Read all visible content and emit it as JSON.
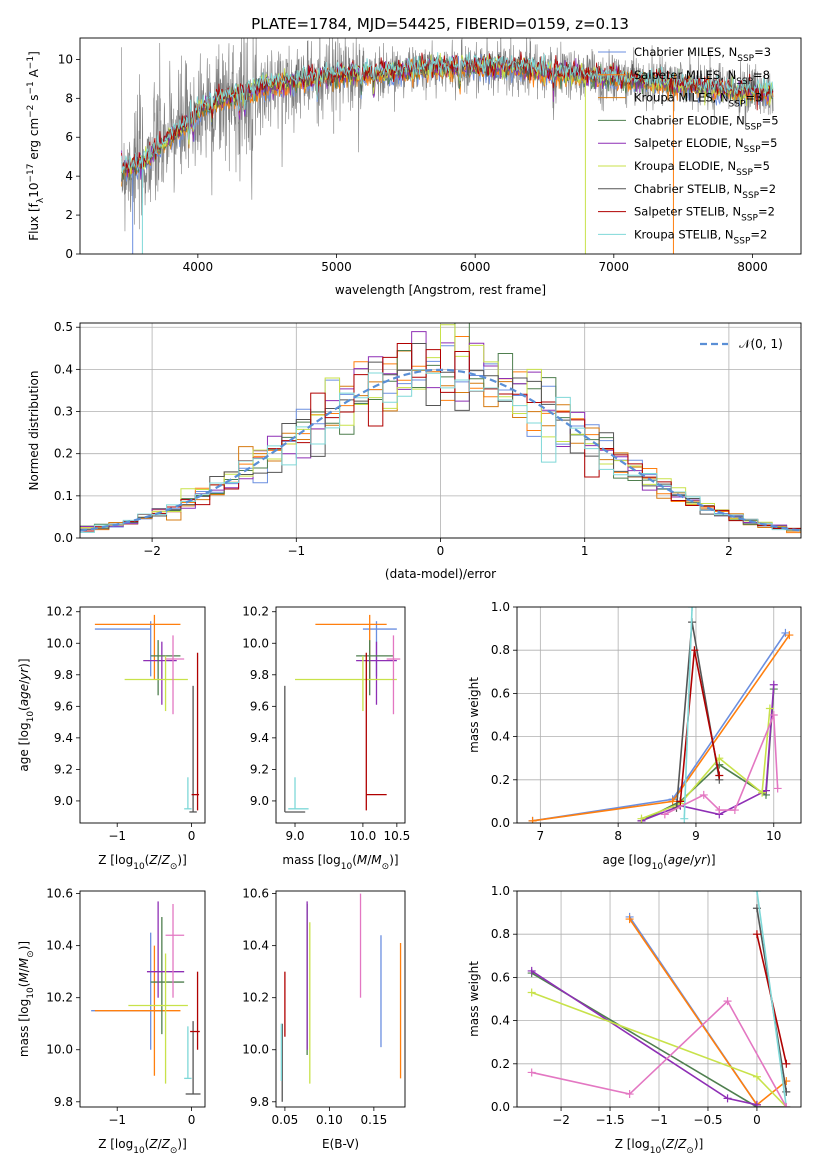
{
  "figure": {
    "title": "PLATE=1784, MJD=54425, FIBERID=0159, z=0.13"
  },
  "colors": {
    "Chabrier MILES": "#6b8fe0",
    "Salpeter MILES": "#ff7f0e",
    "Kroupa MILES": "#d67b12",
    "Chabrier ELODIE": "#4f7f4f",
    "Salpeter ELODIE": "#8e2fb5",
    "Kroupa ELODIE": "#c8e24a",
    "Chabrier STELIB": "#555555",
    "Salpeter STELIB": "#b00000",
    "Kroupa STELIB": "#7fd8d8",
    "data": "#808080",
    "extra_pink": "#e377c2",
    "normal_curve": "#5a8fd6"
  },
  "chart_data": [
    {
      "type": "line",
      "panel": "spectrum",
      "title": "PLATE=1784, MJD=54425, FIBERID=0159, z=0.13",
      "xlabel": "wavelength [Angstrom, rest frame]",
      "ylabel": "Flux [f_λ 10^-17 erg cm^-2 s^-1 A^-1]",
      "xlim": [
        3150,
        8350
      ],
      "ylim": [
        0,
        11.1
      ],
      "xticks": [
        4000,
        5000,
        6000,
        7000,
        8000
      ],
      "yticks": [
        0,
        2,
        4,
        6,
        8,
        10
      ],
      "legend": [
        {
          "label": "Chabrier MILES, N",
          "sub": "SSP",
          "tail": "=3"
        },
        {
          "label": "Salpeter MILES, N",
          "sub": "SSP",
          "tail": "=8"
        },
        {
          "label": "Kroupa MILES, N",
          "sub": "SSP",
          "tail": "=3"
        },
        {
          "label": "Chabrier ELODIE, N",
          "sub": "SSP",
          "tail": "=5"
        },
        {
          "label": "Salpeter ELODIE, N",
          "sub": "SSP",
          "tail": "=5"
        },
        {
          "label": "Kroupa ELODIE, N",
          "sub": "SSP",
          "tail": "=5"
        },
        {
          "label": "Chabrier STELIB, N",
          "sub": "SSP",
          "tail": "=2"
        },
        {
          "label": "Salpeter STELIB, N",
          "sub": "SSP",
          "tail": "=2"
        },
        {
          "label": "Kroupa STELIB, N",
          "sub": "SSP",
          "tail": "=2"
        }
      ],
      "continuum": {
        "x": [
          3450,
          3600,
          3700,
          3800,
          3900,
          4000,
          4100,
          4300,
          4500,
          4800,
          5000,
          5200,
          5500,
          5800,
          6000,
          6300,
          6600,
          6900,
          7200,
          7500,
          7800,
          8150
        ],
        "y": [
          4.4,
          4.6,
          5.4,
          6.0,
          6.6,
          7.3,
          7.8,
          8.2,
          8.6,
          9.0,
          9.2,
          9.3,
          9.4,
          9.6,
          9.6,
          9.6,
          9.3,
          9.1,
          8.9,
          8.7,
          8.4,
          8.3
        ]
      },
      "dropouts": [
        {
          "x": 3530,
          "model": "Chabrier MILES"
        },
        {
          "x": 3600,
          "model": "Kroupa STELIB"
        },
        {
          "x": 3910,
          "model": "Kroupa ELODIE"
        },
        {
          "x": 6795,
          "model": "Kroupa ELODIE"
        },
        {
          "x": 7430,
          "model": "Salpeter MILES"
        }
      ]
    },
    {
      "type": "histogram",
      "panel": "residuals",
      "xlabel": "(data-model)/error",
      "ylabel": "Normed distribution",
      "xlim": [
        -2.5,
        2.5
      ],
      "ylim": [
        0,
        0.51
      ],
      "xticks": [
        -2,
        -1,
        0,
        1,
        2
      ],
      "yticks": [
        0.0,
        0.1,
        0.2,
        0.3,
        0.4,
        0.5
      ],
      "legend": "N(0, 1)",
      "reference_curve": {
        "name": "N(0, 1)",
        "mean": 0,
        "sigma": 1
      },
      "bin_width": 0.1
    },
    {
      "type": "scatter",
      "panel": "Z-vs-age",
      "xlabel": "Z [log10(Z/Z⊙)]",
      "ylabel": "age [log10(age/yr)]",
      "xlim": [
        -1.5,
        0.18
      ],
      "ylim": [
        8.86,
        10.23
      ],
      "xticks": [
        -1,
        0
      ],
      "yticks": [
        9.0,
        9.2,
        9.4,
        9.6,
        9.8,
        10.0,
        10.2
      ],
      "points": [
        {
          "model": "Chabrier MILES",
          "x": -0.55,
          "y": 10.09,
          "xerr": [
            0.75,
            0.0
          ],
          "yerr": [
            0.3,
            0.05
          ]
        },
        {
          "model": "Salpeter MILES",
          "x": -0.5,
          "y": 10.12,
          "xerr": [
            0.8,
            0.35
          ],
          "yerr": [
            0.35,
            0.06
          ]
        },
        {
          "model": "Salpeter ELODIE",
          "x": -0.4,
          "y": 9.89,
          "xerr": [
            0.25,
            0.2
          ],
          "yerr": [
            0.28,
            0.12
          ]
        },
        {
          "model": "Chabrier ELODIE",
          "x": -0.45,
          "y": 9.92,
          "xerr": [
            0.1,
            0.3
          ],
          "yerr": [
            0.25,
            0.1
          ]
        },
        {
          "model": "Kroupa ELODIE",
          "x": -0.35,
          "y": 9.77,
          "xerr": [
            0.55,
            0.3
          ],
          "yerr": [
            0.2,
            0.15
          ]
        },
        {
          "model": "extra_pink",
          "x": -0.25,
          "y": 9.9,
          "xerr": [
            0.1,
            0.15
          ],
          "yerr": [
            0.35,
            0.15
          ]
        },
        {
          "model": "Chabrier STELIB",
          "x": 0.02,
          "y": 8.93,
          "xerr": [
            0.05,
            0.05
          ],
          "yerr": [
            0.0,
            0.8
          ]
        },
        {
          "model": "Salpeter STELIB",
          "x": 0.08,
          "y": 9.04,
          "xerr": [
            0.08,
            0.02
          ],
          "yerr": [
            0.1,
            0.9
          ]
        },
        {
          "model": "Kroupa STELIB",
          "x": -0.05,
          "y": 8.95,
          "xerr": [
            0.05,
            0.05
          ],
          "yerr": [
            0.0,
            0.2
          ]
        }
      ]
    },
    {
      "type": "scatter",
      "panel": "mass-vs-age",
      "xlabel": "mass [log10(M/M⊙)]",
      "ylabel": "",
      "xlim": [
        8.72,
        10.62
      ],
      "ylim": [
        8.86,
        10.23
      ],
      "xticks": [
        9.0,
        10.0,
        10.5
      ],
      "yticks": [
        9.0,
        9.2,
        9.4,
        9.6,
        9.8,
        10.0,
        10.2
      ],
      "points": [
        {
          "model": "Chabrier MILES",
          "x": 10.2,
          "y": 10.09,
          "xerr": [
            0.2,
            0.3
          ],
          "yerr": [
            0.3,
            0.05
          ]
        },
        {
          "model": "Salpeter MILES",
          "x": 10.1,
          "y": 10.12,
          "xerr": [
            0.8,
            0.25
          ],
          "yerr": [
            0.35,
            0.06
          ]
        },
        {
          "model": "Salpeter ELODIE",
          "x": 10.2,
          "y": 9.89,
          "xerr": [
            0.3,
            0.3
          ],
          "yerr": [
            0.28,
            0.12
          ]
        },
        {
          "model": "Chabrier ELODIE",
          "x": 10.1,
          "y": 9.92,
          "xerr": [
            0.2,
            0.35
          ],
          "yerr": [
            0.25,
            0.1
          ]
        },
        {
          "model": "Kroupa ELODIE",
          "x": 10.0,
          "y": 9.77,
          "xerr": [
            1.0,
            0.5
          ],
          "yerr": [
            0.2,
            0.15
          ]
        },
        {
          "model": "extra_pink",
          "x": 10.45,
          "y": 9.9,
          "xerr": [
            0.1,
            0.1
          ],
          "yerr": [
            0.35,
            0.15
          ]
        },
        {
          "model": "Chabrier STELIB",
          "x": 8.85,
          "y": 8.93,
          "xerr": [
            0.0,
            0.3
          ],
          "yerr": [
            0.0,
            0.8
          ]
        },
        {
          "model": "Salpeter STELIB",
          "x": 10.05,
          "y": 9.04,
          "xerr": [
            0.0,
            0.3
          ],
          "yerr": [
            0.1,
            0.9
          ]
        },
        {
          "model": "Kroupa STELIB",
          "x": 9.0,
          "y": 8.95,
          "xerr": [
            0.1,
            0.2
          ],
          "yerr": [
            0.0,
            0.2
          ]
        }
      ]
    },
    {
      "type": "line",
      "panel": "age-vs-massweight",
      "xlabel": "age [log10(age/yr)]",
      "ylabel": "mass weight",
      "xlim": [
        6.7,
        10.35
      ],
      "ylim": [
        0,
        1.0
      ],
      "xticks": [
        7,
        8,
        9,
        10
      ],
      "yticks": [
        0.0,
        0.2,
        0.4,
        0.6,
        0.8,
        1.0
      ],
      "series": [
        {
          "model": "Chabrier MILES",
          "x": [
            6.9,
            8.7,
            10.15
          ],
          "y": [
            0.01,
            0.11,
            0.88
          ]
        },
        {
          "model": "Salpeter MILES",
          "x": [
            6.9,
            8.7,
            10.2
          ],
          "y": [
            0.01,
            0.1,
            0.87
          ]
        },
        {
          "model": "Chabrier ELODIE",
          "x": [
            8.3,
            8.8,
            9.3,
            9.9,
            10.0
          ],
          "y": [
            0.01,
            0.1,
            0.27,
            0.13,
            0.62
          ]
        },
        {
          "model": "Salpeter ELODIE",
          "x": [
            8.3,
            8.8,
            9.3,
            9.9,
            10.0
          ],
          "y": [
            0.01,
            0.08,
            0.04,
            0.15,
            0.64
          ]
        },
        {
          "model": "Kroupa ELODIE",
          "x": [
            8.3,
            8.8,
            9.3,
            9.85,
            9.95
          ],
          "y": [
            0.02,
            0.09,
            0.3,
            0.14,
            0.53
          ]
        },
        {
          "model": "Chabrier STELIB",
          "x": [
            8.75,
            8.95,
            9.3
          ],
          "y": [
            0.07,
            0.93,
            0.2
          ]
        },
        {
          "model": "Salpeter STELIB",
          "x": [
            8.8,
            8.98,
            9.3
          ],
          "y": [
            0.1,
            0.8,
            0.22
          ]
        },
        {
          "model": "Kroupa STELIB",
          "x": [
            8.85,
            8.95
          ],
          "y": [
            0.02,
            1.0
          ]
        },
        {
          "model": "extra_pink",
          "x": [
            8.6,
            9.1,
            9.3,
            9.5,
            10.0,
            10.05
          ],
          "y": [
            0.04,
            0.13,
            0.06,
            0.06,
            0.5,
            0.16
          ]
        }
      ]
    },
    {
      "type": "scatter",
      "panel": "Z-vs-mass",
      "xlabel": "Z [log10(Z/Z⊙)]",
      "ylabel": "mass [log10(M/M⊙)]",
      "xlim": [
        -1.5,
        0.18
      ],
      "ylim": [
        9.78,
        10.61
      ],
      "xticks": [
        -1,
        0
      ],
      "yticks": [
        9.8,
        10.0,
        10.2,
        10.4,
        10.6
      ],
      "points": [
        {
          "model": "Chabrier MILES",
          "x": -0.55,
          "y": 10.15,
          "xerr": [
            0.8,
            0.2
          ],
          "yerr": [
            0.15,
            0.3
          ]
        },
        {
          "model": "Salpeter MILES",
          "x": -0.5,
          "y": 10.15,
          "xerr": [
            0.8,
            0.35
          ],
          "yerr": [
            0.25,
            0.25
          ]
        },
        {
          "model": "Chabrier ELODIE",
          "x": -0.4,
          "y": 10.26,
          "xerr": [
            0.15,
            0.3
          ],
          "yerr": [
            0.2,
            0.25
          ]
        },
        {
          "model": "Salpeter ELODIE",
          "x": -0.45,
          "y": 10.3,
          "xerr": [
            0.15,
            0.35
          ],
          "yerr": [
            0.1,
            0.27
          ]
        },
        {
          "model": "Kroupa ELODIE",
          "x": -0.35,
          "y": 10.17,
          "xerr": [
            0.5,
            0.3
          ],
          "yerr": [
            0.3,
            0.2
          ]
        },
        {
          "model": "extra_pink",
          "x": -0.25,
          "y": 10.44,
          "xerr": [
            0.1,
            0.15
          ],
          "yerr": [
            0.24,
            0.12
          ]
        },
        {
          "model": "Chabrier STELIB",
          "x": 0.02,
          "y": 9.83,
          "xerr": [
            0.1,
            0.1
          ],
          "yerr": [
            0.0,
            0.28
          ]
        },
        {
          "model": "Salpeter STELIB",
          "x": 0.08,
          "y": 10.07,
          "xerr": [
            0.1,
            0.03
          ],
          "yerr": [
            0.07,
            0.23
          ]
        },
        {
          "model": "Kroupa STELIB",
          "x": -0.05,
          "y": 9.89,
          "xerr": [
            0.05,
            0.05
          ],
          "yerr": [
            0.0,
            0.2
          ]
        }
      ]
    },
    {
      "type": "scatter",
      "panel": "EBV-vs-mass",
      "xlabel": "E(B-V)",
      "ylabel": "",
      "xlim": [
        0.04,
        0.185
      ],
      "ylim": [
        9.78,
        10.61
      ],
      "xticks": [
        0.05,
        0.1,
        0.15
      ],
      "yticks": [
        9.8,
        10.0,
        10.2,
        10.4,
        10.6
      ],
      "points": [
        {
          "model": "Chabrier MILES",
          "x": 0.158,
          "y": 10.2,
          "yerr": [
            0.19,
            0.24
          ]
        },
        {
          "model": "Salpeter MILES",
          "x": 0.18,
          "y": 10.15,
          "yerr": [
            0.26,
            0.26
          ]
        },
        {
          "model": "Chabrier ELODIE",
          "x": 0.075,
          "y": 10.26,
          "yerr": [
            0.28,
            0.3
          ]
        },
        {
          "model": "Salpeter ELODIE",
          "x": 0.075,
          "y": 10.3,
          "yerr": [
            0.3,
            0.27
          ]
        },
        {
          "model": "Kroupa ELODIE",
          "x": 0.078,
          "y": 10.17,
          "yerr": [
            0.3,
            0.32
          ]
        },
        {
          "model": "extra_pink",
          "x": 0.135,
          "y": 10.4,
          "yerr": [
            0.2,
            0.2
          ]
        },
        {
          "model": "Chabrier STELIB",
          "x": 0.047,
          "y": 9.96,
          "yerr": [
            0.16,
            0.14
          ]
        },
        {
          "model": "Salpeter STELIB",
          "x": 0.05,
          "y": 10.15,
          "yerr": [
            0.1,
            0.15
          ]
        },
        {
          "model": "Kroupa STELIB",
          "x": 0.046,
          "y": 9.98,
          "yerr": [
            0.1,
            0.12
          ]
        }
      ]
    },
    {
      "type": "line",
      "panel": "Z-vs-massweight",
      "xlabel": "Z [log10(Z/Z⊙)]",
      "ylabel": "mass weight",
      "xlim": [
        -2.45,
        0.45
      ],
      "ylim": [
        0,
        1.0
      ],
      "xticks": [
        -2.0,
        -1.5,
        -1.0,
        -0.5,
        0.0
      ],
      "yticks": [
        0.0,
        0.2,
        0.4,
        0.6,
        0.8,
        1.0
      ],
      "series": [
        {
          "model": "Chabrier MILES",
          "x": [
            -1.3,
            0.0
          ],
          "y": [
            0.88,
            0.01
          ]
        },
        {
          "model": "Salpeter MILES",
          "x": [
            -1.3,
            0.0,
            0.3
          ],
          "y": [
            0.87,
            0.01,
            0.12
          ]
        },
        {
          "model": "Chabrier ELODIE",
          "x": [
            -2.3,
            0.0,
            0.3
          ],
          "y": [
            0.62,
            0.0,
            0.0
          ]
        },
        {
          "model": "Salpeter ELODIE",
          "x": [
            -2.3,
            -0.3,
            0.0
          ],
          "y": [
            0.63,
            0.04,
            0.01
          ]
        },
        {
          "model": "Kroupa ELODIE",
          "x": [
            -2.3,
            0.0,
            0.3
          ],
          "y": [
            0.53,
            0.14,
            0.0
          ]
        },
        {
          "model": "Chabrier STELIB",
          "x": [
            0.0,
            0.3
          ],
          "y": [
            0.92,
            0.07
          ]
        },
        {
          "model": "Salpeter STELIB",
          "x": [
            0.0,
            0.3
          ],
          "y": [
            0.8,
            0.2
          ]
        },
        {
          "model": "Kroupa STELIB",
          "x": [
            0.0,
            0.3
          ],
          "y": [
            1.0,
            0.0
          ]
        },
        {
          "model": "extra_pink",
          "x": [
            -2.3,
            -1.3,
            -0.3,
            0.3
          ],
          "y": [
            0.16,
            0.06,
            0.49,
            0.0
          ]
        }
      ]
    }
  ]
}
